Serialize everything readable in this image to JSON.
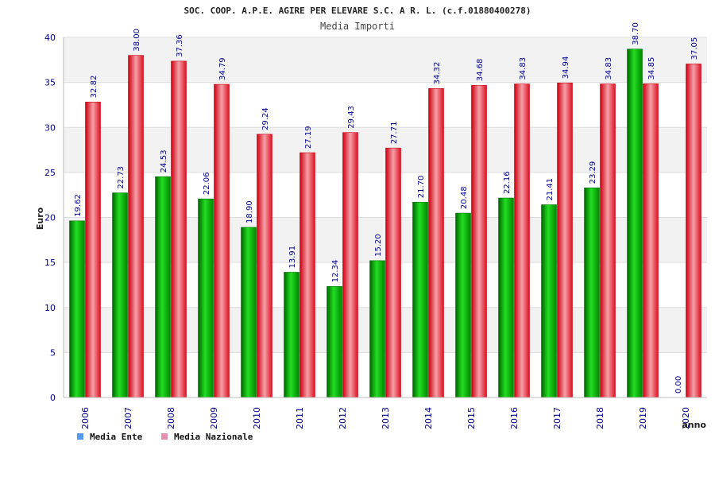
{
  "chart_data": {
    "type": "bar",
    "title": "SOC. COOP. A.P.E. AGIRE PER ELEVARE S.C. A R. L. (c.f.01880400278)",
    "subtitle": "Media Importi",
    "xlabel": "anno",
    "ylabel": "Euro",
    "ylim": [
      0,
      40
    ],
    "yticks": [
      0,
      5,
      10,
      15,
      20,
      25,
      30,
      35,
      40
    ],
    "categories": [
      "2006",
      "2007",
      "2008",
      "2009",
      "2010",
      "2011",
      "2012",
      "2013",
      "2014",
      "2015",
      "2016",
      "2017",
      "2018",
      "2019",
      "2020"
    ],
    "series": [
      {
        "name": "Media Ente",
        "color": "#00aa00",
        "values": [
          19.62,
          22.73,
          24.53,
          22.06,
          18.9,
          13.91,
          12.34,
          15.2,
          21.7,
          20.48,
          22.16,
          21.41,
          23.29,
          38.7,
          0.0
        ],
        "labels": [
          "19.62",
          "22.73",
          "24.53",
          "22.06",
          "18.90",
          "13.91",
          "12.34",
          "15.20",
          "21.70",
          "20.48",
          "22.16",
          "21.41",
          "23.29",
          "38.70",
          "0.00"
        ]
      },
      {
        "name": "Media Nazionale",
        "color": "#dd1122",
        "values": [
          32.82,
          38.0,
          37.36,
          34.79,
          29.24,
          27.19,
          29.43,
          27.71,
          34.32,
          34.68,
          34.83,
          34.94,
          34.83,
          34.85,
          37.05
        ],
        "labels": [
          "32.82",
          "38.00",
          "37.36",
          "34.79",
          "29.24",
          "27.19",
          "29.43",
          "27.71",
          "34.32",
          "34.68",
          "34.83",
          "34.94",
          "34.83",
          "34.85",
          "37.05"
        ]
      }
    ],
    "legend": [
      {
        "label": "Media Ente",
        "color": "#5599ee"
      },
      {
        "label": "Media Nazionale",
        "color": "#e68fb0"
      }
    ],
    "legend_position": "bottom-left",
    "grid": true
  }
}
